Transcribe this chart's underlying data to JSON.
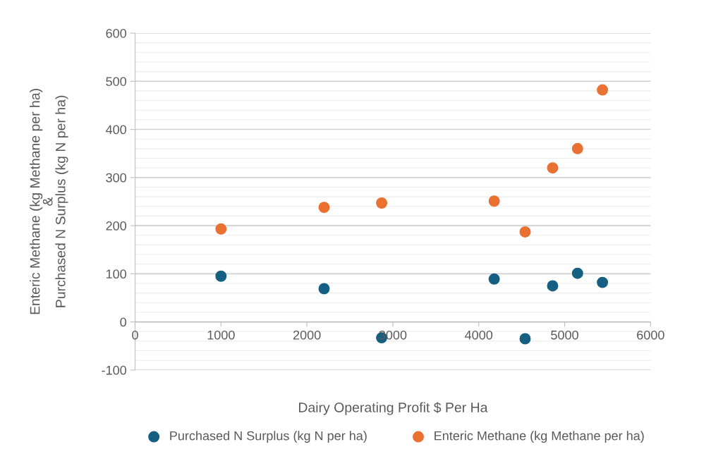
{
  "chart_data": {
    "type": "scatter",
    "xlabel": "Dairy Operating Profit $ Per Ha",
    "ylabel": "Enteric Methane (kg Methane per ha)\n&\nPurchased N Surplus (kg N per ha)",
    "xlim": [
      0,
      6000
    ],
    "xticks": [
      0,
      1000,
      2000,
      3000,
      4000,
      5000,
      6000
    ],
    "ylim": [
      -100,
      600
    ],
    "yticks": [
      -100,
      0,
      100,
      200,
      300,
      400,
      500,
      600
    ],
    "grid": "y",
    "legend": "bottom",
    "marker": "circle",
    "series": [
      {
        "name": "Purchased N Surplus (kg N per ha)",
        "color": "#156082",
        "x": [
          1000,
          2200,
          2870,
          4180,
          4540,
          4860,
          5150,
          5440
        ],
        "values": [
          95,
          69,
          -33,
          89,
          -35,
          75,
          101,
          82
        ]
      },
      {
        "name": "Enteric Methane (kg Methane per ha)",
        "color": "#e97132",
        "x": [
          1000,
          2200,
          2870,
          4180,
          4540,
          4860,
          5150,
          5440
        ],
        "values": [
          193,
          238,
          247,
          251,
          187,
          320,
          360,
          482
        ]
      }
    ]
  }
}
